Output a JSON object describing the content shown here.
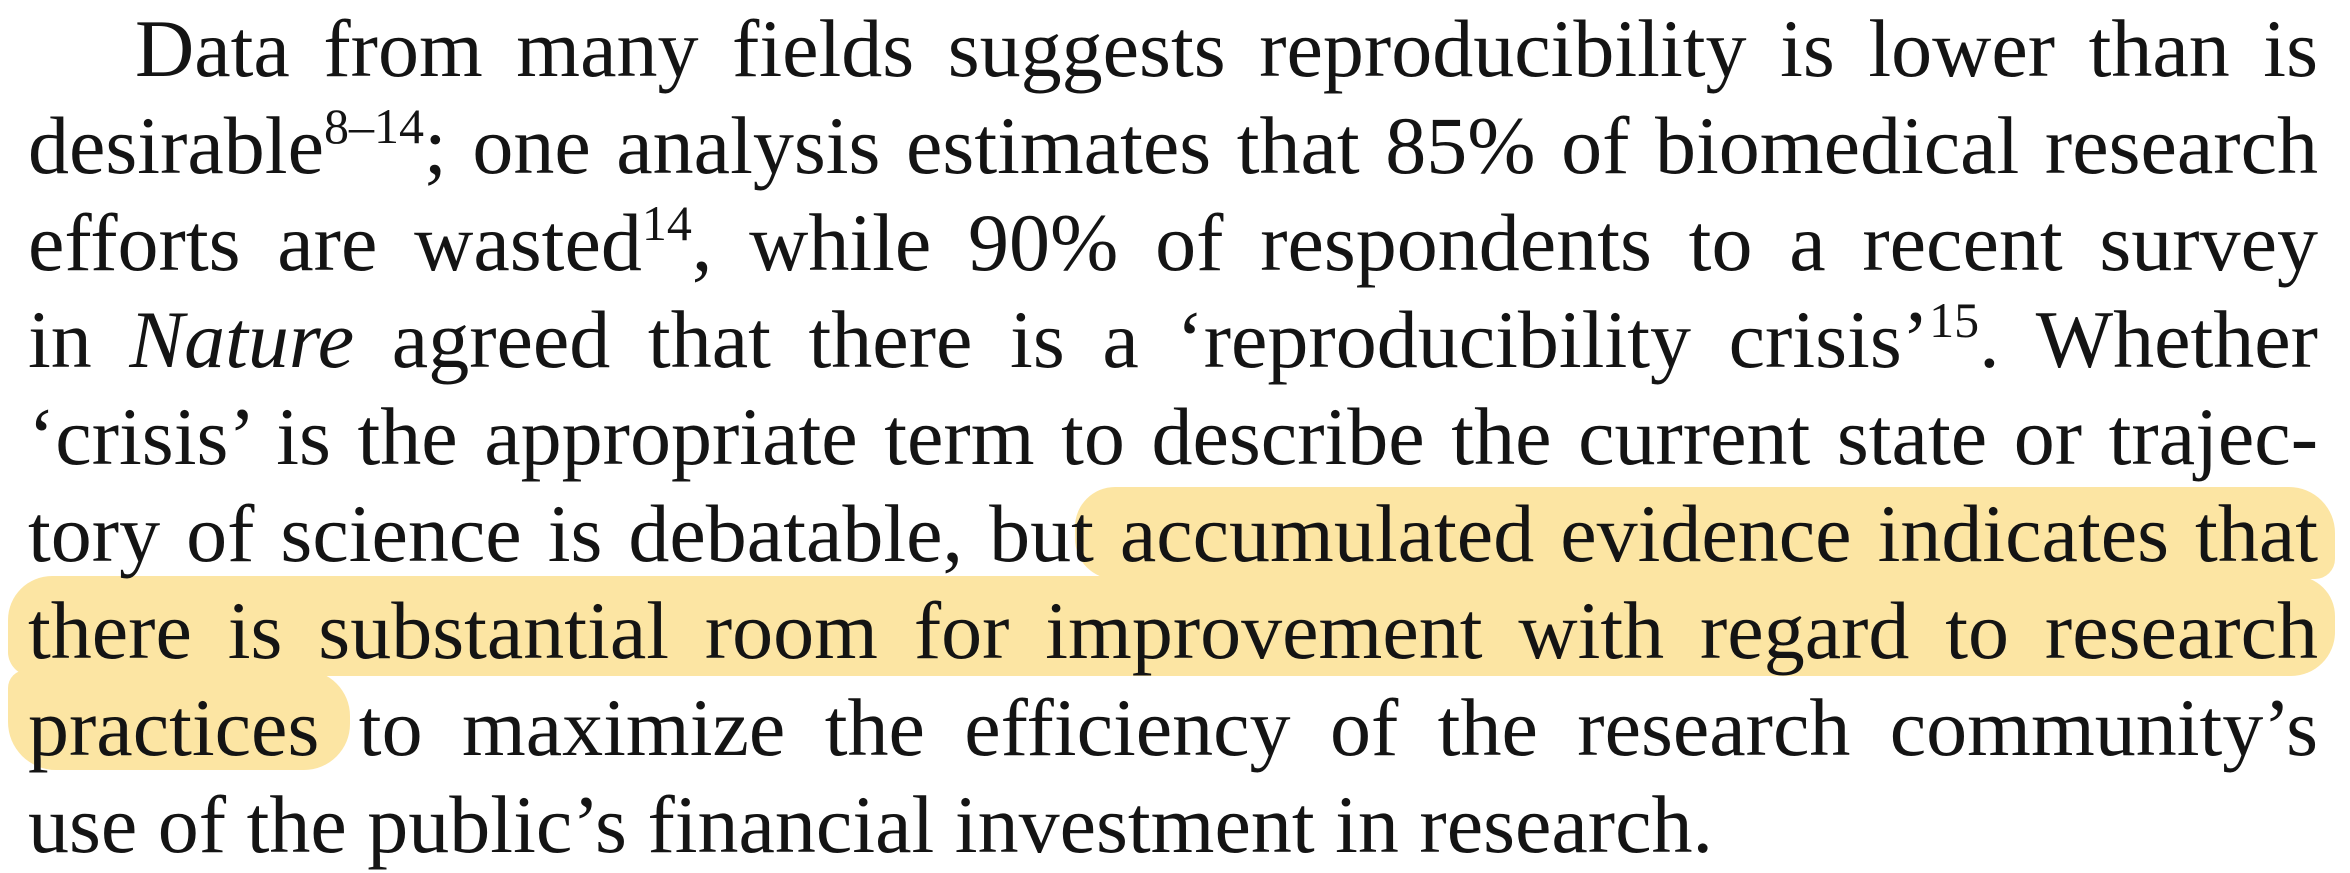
{
  "paragraph": {
    "line1": {
      "text": "Data from many fields suggests reproducibility is lower than is"
    },
    "line2": {
      "pre": "desirable",
      "sup": "8–14",
      "post": "; one analysis estimates that 85% of biomedical research"
    },
    "line3": {
      "pre": "efforts are wasted",
      "sup": "14",
      "post": ", while 90% of respondents to a recent survey"
    },
    "line4": {
      "pre": "in ",
      "italic": "Nature",
      "mid": " agreed that there is a ‘reproducibility crisis’",
      "sup": "15",
      "post": ". Whether"
    },
    "line5": {
      "text": "‘crisis’ is the appropriate term to describe the current state or trajec-"
    },
    "line6": {
      "pre": "tory of science is debatable, but ",
      "highlight": "accumulated evidence indicates that"
    },
    "line7": {
      "highlight": "there is substantial room for improvement with regard to research"
    },
    "line8": {
      "highlight": "practices",
      "post": " to maximize the efficiency of the research community’s"
    },
    "line9": {
      "text": "use of the public’s financial investment in research."
    }
  },
  "colors": {
    "highlight": "#fce5a3",
    "text": "#141414",
    "background": "#ffffff"
  }
}
